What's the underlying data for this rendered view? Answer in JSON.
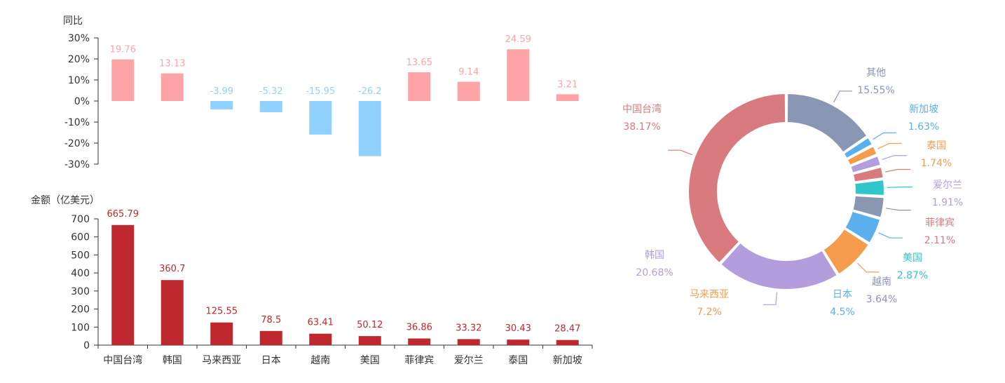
{
  "chart_data": [
    {
      "type": "bar",
      "ylabel": "同比",
      "ylim": [
        -30,
        30
      ],
      "yticks": [
        30,
        20,
        10,
        0,
        -10,
        -20,
        -30
      ],
      "ytick_labels": [
        "30%",
        "20%",
        "10%",
        "0%",
        "-10%",
        "-20%",
        "-30%"
      ],
      "categories": [
        "中国台湾",
        "韩国",
        "马来西亚",
        "日本",
        "越南",
        "美国",
        "菲律宾",
        "爱尔兰",
        "泰国",
        "新加坡"
      ],
      "values": [
        19.76,
        13.13,
        -3.99,
        -5.32,
        -15.95,
        -26.2,
        13.65,
        9.14,
        24.59,
        3.21
      ],
      "value_labels": [
        "19.76",
        "13.13",
        "-3.99",
        "-5.32",
        "-15.95",
        "-26.2",
        "13.65",
        "9.14",
        "24.59",
        "3.21"
      ],
      "colors": {
        "positive": "#ffa4a6",
        "negative": "#91d1ff"
      },
      "grid": false
    },
    {
      "type": "bar",
      "ylabel": "金额（亿美元）",
      "ylim": [
        0,
        700
      ],
      "yticks": [
        0,
        100,
        200,
        300,
        400,
        500,
        600,
        700
      ],
      "ytick_labels": [
        "0",
        "100",
        "200",
        "300",
        "400",
        "500",
        "600",
        "700"
      ],
      "categories": [
        "中国台湾",
        "韩国",
        "马来西亚",
        "日本",
        "越南",
        "美国",
        "菲律宾",
        "爱尔兰",
        "泰国",
        "新加坡"
      ],
      "values": [
        665.79,
        360.7,
        125.55,
        78.5,
        63.41,
        50.12,
        36.86,
        33.32,
        30.43,
        28.47
      ],
      "value_labels": [
        "665.79",
        "360.7",
        "125.55",
        "78.5",
        "63.41",
        "50.12",
        "36.86",
        "33.32",
        "30.43",
        "28.47"
      ],
      "colors": {
        "bar": "#c0282f",
        "label": "#c0282f"
      },
      "grid": false
    },
    {
      "type": "pie",
      "donut": true,
      "slices": [
        {
          "name": "其他",
          "value": 15.55,
          "label": "15.55%",
          "color": "#8a97b3"
        },
        {
          "name": "新加坡",
          "value": 1.63,
          "label": "1.63%",
          "color": "#59b0ec"
        },
        {
          "name": "泰国",
          "value": 1.74,
          "label": "1.74%",
          "color": "#f59c4c"
        },
        {
          "name": "爱尔兰",
          "value": 1.91,
          "label": "1.91%",
          "color": "#b39ddd"
        },
        {
          "name": "菲律宾",
          "value": 2.11,
          "label": "2.11%",
          "color": "#d97a7f"
        },
        {
          "name": "美国",
          "value": 2.87,
          "label": "2.87%",
          "color": "#2fc7c9"
        },
        {
          "name": "越南",
          "value": 3.64,
          "label": "3.64%",
          "color": "#8a97b3"
        },
        {
          "name": "日本",
          "value": 4.5,
          "label": "4.5%",
          "color": "#59b0ec"
        },
        {
          "name": "马来西亚",
          "value": 7.2,
          "label": "7.2%",
          "color": "#f59c4c"
        },
        {
          "name": "韩国",
          "value": 20.68,
          "label": "20.68%",
          "color": "#b39ddd"
        },
        {
          "name": "中国台湾",
          "value": 38.17,
          "label": "38.17%",
          "color": "#d97a7f"
        }
      ]
    }
  ]
}
